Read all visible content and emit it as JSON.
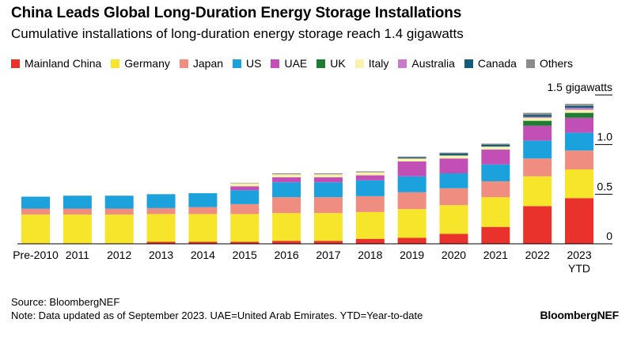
{
  "title": "China Leads Global Long-Duration Energy Storage Installations",
  "subtitle": "Cumulative installations of long-duration energy storage reach 1.4 gigawatts",
  "source": "Source: BloombergNEF",
  "note": "Note: Data updated as of September 2023. UAE=United Arab Emirates. YTD=Year-to-date",
  "brand": "BloombergNEF",
  "legend": [
    {
      "label": "Mainland China",
      "color": "#e8322b"
    },
    {
      "label": "Germany",
      "color": "#f7e52b"
    },
    {
      "label": "Japan",
      "color": "#ef8e80"
    },
    {
      "label": "US",
      "color": "#1ba1dc"
    },
    {
      "label": "UAE",
      "color": "#c14fb5"
    },
    {
      "label": "UK",
      "color": "#1e7d32"
    },
    {
      "label": "Italy",
      "color": "#fbf2b0"
    },
    {
      "label": "Australia",
      "color": "#c97ac8"
    },
    {
      "label": "Canada",
      "color": "#155c7a"
    },
    {
      "label": "Others",
      "color": "#8c8c8c"
    }
  ],
  "chart_data": {
    "type": "bar",
    "stacked": true,
    "title": "China Leads Global Long-Duration Energy Storage Installations",
    "subtitle": "Cumulative installations of long-duration energy storage reach 1.4 gigawatts",
    "ylabel": "gigawatts",
    "ylim": [
      0,
      1.5
    ],
    "yticks": [
      {
        "value": 0,
        "label": "0"
      },
      {
        "value": 0.5,
        "label": "0.5"
      },
      {
        "value": 1.0,
        "label": "1.0"
      },
      {
        "value": 1.5,
        "label": "1.5 gigawatts"
      }
    ],
    "categories": [
      [
        "Pre-2010"
      ],
      [
        "2011"
      ],
      [
        "2012"
      ],
      [
        "2013"
      ],
      [
        "2014"
      ],
      [
        "2015"
      ],
      [
        "2016"
      ],
      [
        "2017"
      ],
      [
        "2018"
      ],
      [
        "2019"
      ],
      [
        "2020"
      ],
      [
        "2021"
      ],
      [
        "2022"
      ],
      [
        "2023",
        "YTD"
      ]
    ],
    "series": [
      {
        "name": "Mainland China",
        "color": "#e8322b",
        "values": [
          0.005,
          0.005,
          0.005,
          0.02,
          0.02,
          0.02,
          0.03,
          0.03,
          0.05,
          0.06,
          0.1,
          0.17,
          0.38,
          0.46
        ]
      },
      {
        "name": "Germany",
        "color": "#f7e52b",
        "values": [
          0.29,
          0.29,
          0.29,
          0.28,
          0.28,
          0.28,
          0.28,
          0.28,
          0.27,
          0.29,
          0.29,
          0.3,
          0.3,
          0.29
        ]
      },
      {
        "name": "Japan",
        "color": "#ef8e80",
        "values": [
          0.06,
          0.06,
          0.06,
          0.06,
          0.07,
          0.1,
          0.16,
          0.16,
          0.16,
          0.17,
          0.17,
          0.16,
          0.18,
          0.19
        ]
      },
      {
        "name": "US",
        "color": "#1ba1dc",
        "values": [
          0.12,
          0.13,
          0.13,
          0.14,
          0.14,
          0.14,
          0.15,
          0.15,
          0.16,
          0.16,
          0.15,
          0.17,
          0.18,
          0.18
        ]
      },
      {
        "name": "UAE",
        "color": "#c14fb5",
        "values": [
          0,
          0,
          0,
          0,
          0,
          0.04,
          0.05,
          0.05,
          0.05,
          0.15,
          0.15,
          0.15,
          0.15,
          0.15
        ]
      },
      {
        "name": "UK",
        "color": "#1e7d32",
        "values": [
          0,
          0,
          0,
          0,
          0,
          0,
          0,
          0,
          0,
          0,
          0,
          0,
          0.05,
          0.05
        ]
      },
      {
        "name": "Italy",
        "color": "#fbf2b0",
        "values": [
          0,
          0,
          0,
          0,
          0,
          0.03,
          0.03,
          0.03,
          0.03,
          0.03,
          0.03,
          0.03,
          0.03,
          0.03
        ]
      },
      {
        "name": "Australia",
        "color": "#c97ac8",
        "values": [
          0,
          0,
          0,
          0,
          0,
          0,
          0,
          0,
          0,
          0,
          0,
          0,
          0.01,
          0.02
        ]
      },
      {
        "name": "Canada",
        "color": "#155c7a",
        "values": [
          0,
          0,
          0,
          0,
          0,
          0,
          0,
          0,
          0,
          0.01,
          0.02,
          0.02,
          0.02,
          0.02
        ]
      },
      {
        "name": "Others",
        "color": "#8c8c8c",
        "values": [
          0,
          0,
          0,
          0,
          0,
          0.005,
          0.01,
          0.01,
          0.01,
          0.01,
          0.01,
          0.01,
          0.02,
          0.02
        ]
      }
    ]
  }
}
